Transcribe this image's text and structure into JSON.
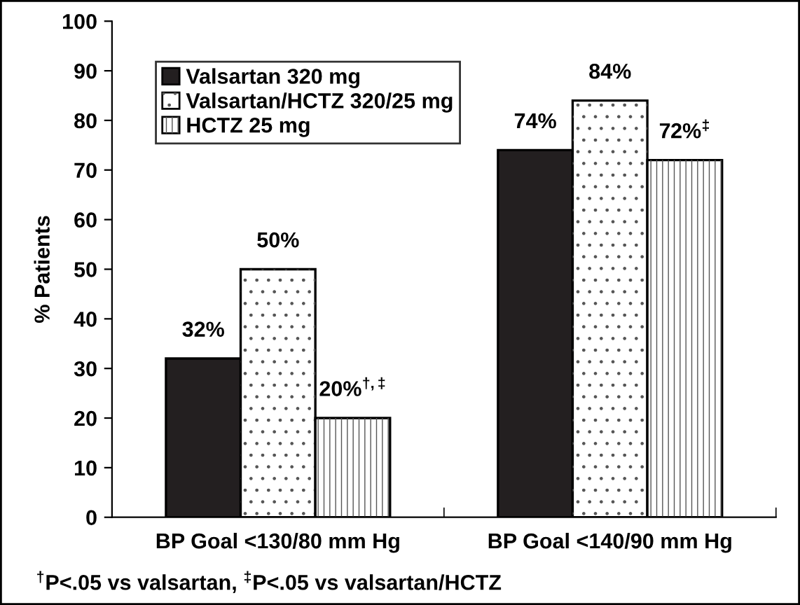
{
  "chart_data": {
    "type": "bar",
    "ylabel": "% Patients",
    "categories": [
      "BP Goal <130/80 mm Hg",
      "BP Goal <140/90 mm Hg"
    ],
    "series": [
      {
        "name": "Valsartan 320 mg",
        "color": "#231f20",
        "values": [
          32,
          74
        ],
        "value_labels": [
          "32%",
          "74%"
        ]
      },
      {
        "name": "Valsartan/HCTZ 320/25 mg",
        "color": "#ffffff",
        "values": [
          50,
          84
        ],
        "value_labels": [
          "50%",
          "84%"
        ]
      },
      {
        "name": "HCTZ 25 mg",
        "color": "#ffffff",
        "values": [
          20,
          72
        ],
        "value_labels": [
          "20%$^{†,‡}$",
          "72%$^{‡}$"
        ]
      }
    ],
    "ylim": [
      0,
      100
    ],
    "yticks": [
      0,
      10,
      20,
      30,
      40,
      50,
      60,
      70,
      80,
      90,
      100
    ],
    "grid": false,
    "legend": "top left",
    "annotations": [
      "$^{†}$P<.05 vs valsartan, $^{‡}$P<.05 vs valsartan/HCTZ"
    ]
  }
}
